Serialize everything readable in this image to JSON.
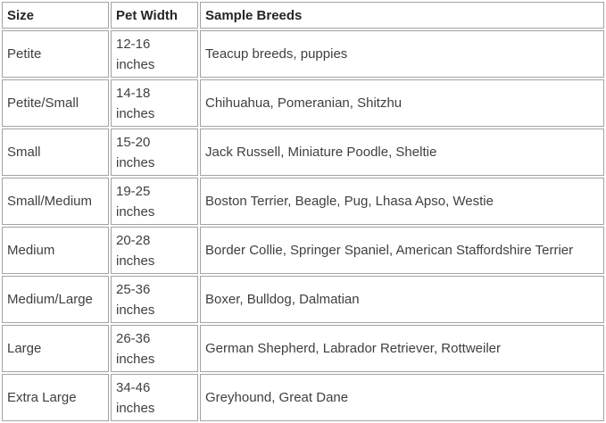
{
  "table": {
    "headers": [
      "Size",
      "Pet Width",
      "Sample Breeds"
    ],
    "rows": [
      {
        "size": "Petite",
        "width": "12-16\ninches",
        "breeds": "Teacup breeds, puppies"
      },
      {
        "size": "Petite/Small",
        "width": "14-18\ninches",
        "breeds": "Chihuahua, Pomeranian, Shitzhu"
      },
      {
        "size": "Small",
        "width": "15-20\ninches",
        "breeds": "Jack Russell, Miniature Poodle, Sheltie"
      },
      {
        "size": "Small/Medium",
        "width": "19-25\ninches",
        "breeds": "Boston Terrier, Beagle, Pug, Lhasa Apso, Westie"
      },
      {
        "size": "Medium",
        "width": "20-28\ninches",
        "breeds": "Border Collie, Springer Spaniel, American Staffordshire Terrier"
      },
      {
        "size": "Medium/Large",
        "width": "25-36\ninches",
        "breeds": "Boxer, Bulldog, Dalmatian"
      },
      {
        "size": "Large",
        "width": "26-36\ninches",
        "breeds": "German Shepherd, Labrador Retriever, Rottweiler"
      },
      {
        "size": "Extra Large",
        "width": "34-46\ninches",
        "breeds": "Greyhound, Great Dane"
      }
    ],
    "colors": {
      "border": "#a3a3a3",
      "header_text": "#262626",
      "body_text": "#3f3f3f",
      "background": "#ffffff"
    }
  }
}
